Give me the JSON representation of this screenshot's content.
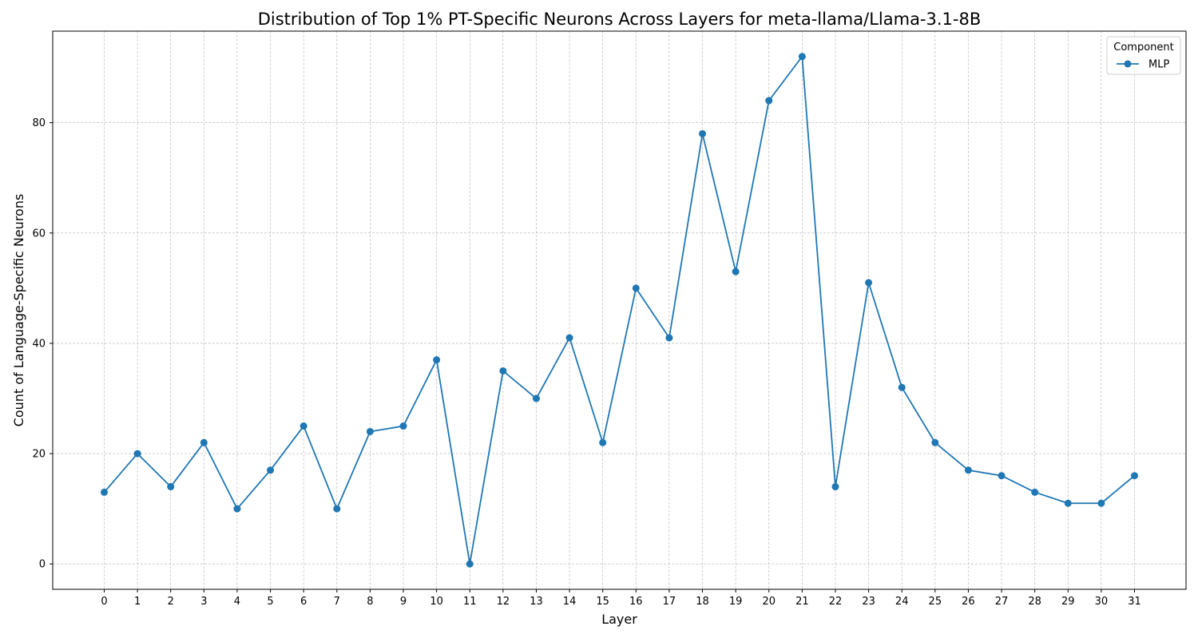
{
  "chart_data": {
    "type": "line",
    "title": "Distribution of Top 1% PT-Specific Neurons Across Layers for meta-llama/Llama-3.1-8B",
    "xlabel": "Layer",
    "ylabel": "Count of Language-Specific Neurons",
    "x": [
      0,
      1,
      2,
      3,
      4,
      5,
      6,
      7,
      8,
      9,
      10,
      11,
      12,
      13,
      14,
      15,
      16,
      17,
      18,
      19,
      20,
      21,
      22,
      23,
      24,
      25,
      26,
      27,
      28,
      29,
      30,
      31
    ],
    "x_tick_labels": [
      "0",
      "1",
      "2",
      "3",
      "4",
      "5",
      "6",
      "7",
      "8",
      "9",
      "10",
      "11",
      "12",
      "13",
      "14",
      "15",
      "16",
      "17",
      "18",
      "19",
      "20",
      "21",
      "22",
      "23",
      "24",
      "25",
      "26",
      "27",
      "28",
      "29",
      "30",
      "31"
    ],
    "y_ticks": [
      0,
      20,
      40,
      60,
      80
    ],
    "y_tick_labels": [
      "0",
      "20",
      "40",
      "60",
      "80"
    ],
    "xlim": [
      -1.55,
      32.55
    ],
    "ylim": [
      -4.6,
      96.6
    ],
    "grid": true,
    "series": [
      {
        "name": "MLP",
        "color": "#1f77b4",
        "marker": "circle",
        "values": [
          13,
          20,
          14,
          22,
          10,
          17,
          25,
          10,
          24,
          25,
          37,
          0,
          35,
          30,
          41,
          22,
          50,
          41,
          78,
          53,
          84,
          92,
          14,
          51,
          32,
          22,
          17,
          16,
          13,
          11,
          11,
          16
        ]
      }
    ],
    "legend": {
      "title": "Component",
      "placement": "top-right"
    }
  }
}
